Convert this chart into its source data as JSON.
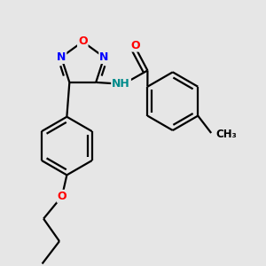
{
  "bg_color": "#e6e6e6",
  "bond_color": "#000000",
  "N_color": "#0000ff",
  "O_color": "#ff0000",
  "NH_color": "#008b8b",
  "linewidth": 1.6,
  "fig_w": 3.0,
  "fig_h": 3.0,
  "dpi": 100,
  "xlim": [
    0,
    10
  ],
  "ylim": [
    0,
    10
  ]
}
